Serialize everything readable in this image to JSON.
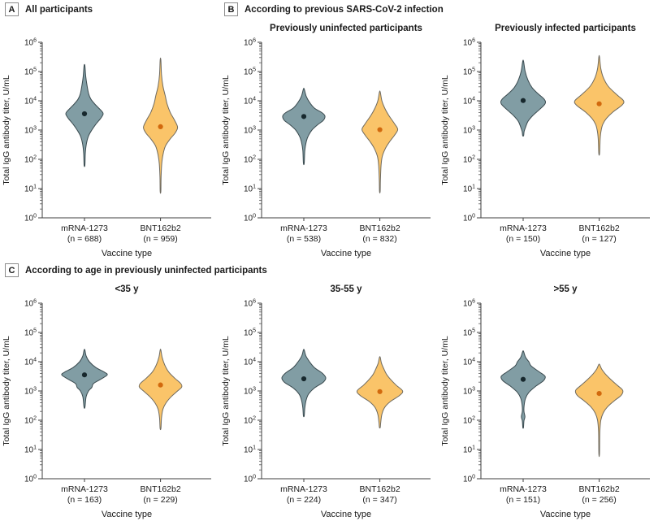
{
  "colors": {
    "background": "#ffffff",
    "text": "#1a1a1a",
    "axis": "#3f3f3f",
    "teal_fill": "#819DA4",
    "teal_stroke": "#3A4A4F",
    "teal_dot": "#17282D",
    "orange_fill": "#FAC469",
    "orange_stroke": "#6E6A60",
    "orange_dot": "#D2690D"
  },
  "axis": {
    "y_label": "Total IgG antibody titer, U/mL",
    "x_label": "Vaccine type",
    "y_scale": "log10",
    "ylim": [
      1,
      1000000
    ],
    "y_tick_exponents": [
      0,
      1,
      2,
      3,
      4,
      5,
      6
    ],
    "minor_ticks": true,
    "grid": false
  },
  "chart_data": {
    "type": "violin",
    "panels": [
      {
        "id": "A",
        "letter": "A",
        "header": "All participants",
        "subtitle": "",
        "row": 0,
        "col": 0,
        "series": [
          {
            "name": "mRNA-1273",
            "n": 688,
            "n_label": "(n = 688)",
            "color": "teal",
            "median": 3600,
            "range": [
              65,
              160000
            ],
            "profile": [
              [
                5.2,
                0.5
              ],
              [
                4.85,
                1.5
              ],
              [
                4.55,
                3
              ],
              [
                4.25,
                5
              ],
              [
                4.05,
                8
              ],
              [
                3.85,
                14
              ],
              [
                3.65,
                21
              ],
              [
                3.55,
                23
              ],
              [
                3.4,
                20
              ],
              [
                3.2,
                14
              ],
              [
                3.0,
                9
              ],
              [
                2.8,
                5
              ],
              [
                2.55,
                2.5
              ],
              [
                2.2,
                1
              ],
              [
                1.8,
                0.5
              ]
            ]
          },
          {
            "name": "BNT162b2",
            "n": 959,
            "n_label": "(n = 959)",
            "color": "orange",
            "median": 1300,
            "range": [
              8,
              250000
            ],
            "profile": [
              [
                5.4,
                0.4
              ],
              [
                4.9,
                1.2
              ],
              [
                4.5,
                3
              ],
              [
                4.15,
                6
              ],
              [
                3.9,
                8
              ],
              [
                3.6,
                12
              ],
              [
                3.35,
                17
              ],
              [
                3.1,
                21
              ],
              [
                2.9,
                18
              ],
              [
                2.7,
                12
              ],
              [
                2.45,
                6
              ],
              [
                2.15,
                3
              ],
              [
                1.85,
                1.5
              ],
              [
                1.4,
                0.7
              ],
              [
                0.9,
                0.4
              ]
            ]
          }
        ]
      },
      {
        "id": "B1",
        "letter": "B",
        "header": "According to previous SARS-CoV-2 infection",
        "subtitle": "Previously uninfected participants",
        "row": 0,
        "col": 1,
        "series": [
          {
            "name": "mRNA-1273",
            "n": 538,
            "n_label": "(n = 538)",
            "color": "teal",
            "median": 2900,
            "range": [
              75,
              25000
            ],
            "profile": [
              [
                4.4,
                0.5
              ],
              [
                4.15,
                3
              ],
              [
                3.95,
                7
              ],
              [
                3.75,
                13
              ],
              [
                3.6,
                22
              ],
              [
                3.48,
                26
              ],
              [
                3.33,
                24
              ],
              [
                3.18,
                17
              ],
              [
                3.0,
                10
              ],
              [
                2.8,
                5.5
              ],
              [
                2.6,
                3
              ],
              [
                2.3,
                1.2
              ],
              [
                1.87,
                0.5
              ]
            ]
          },
          {
            "name": "BNT162b2",
            "n": 832,
            "n_label": "(n = 832)",
            "color": "orange",
            "median": 1030,
            "range": [
              8,
              20000
            ],
            "profile": [
              [
                4.3,
                0.5
              ],
              [
                4.0,
                2.5
              ],
              [
                3.75,
                6
              ],
              [
                3.5,
                11
              ],
              [
                3.22,
                18
              ],
              [
                3.02,
                22
              ],
              [
                2.82,
                18
              ],
              [
                2.6,
                12
              ],
              [
                2.38,
                7
              ],
              [
                2.1,
                3
              ],
              [
                1.8,
                1.5
              ],
              [
                1.3,
                0.7
              ],
              [
                0.9,
                0.4
              ]
            ]
          }
        ]
      },
      {
        "id": "B2",
        "letter": "",
        "header": "",
        "subtitle": "Previously infected participants",
        "row": 0,
        "col": 2,
        "series": [
          {
            "name": "mRNA-1273",
            "n": 150,
            "n_label": "(n = 150)",
            "color": "teal",
            "median": 10200,
            "range": [
              650,
              220000
            ],
            "profile": [
              [
                5.35,
                0.5
              ],
              [
                5.0,
                2.5
              ],
              [
                4.7,
                6
              ],
              [
                4.45,
                11
              ],
              [
                4.25,
                18
              ],
              [
                4.05,
                26
              ],
              [
                3.9,
                27
              ],
              [
                3.7,
                20
              ],
              [
                3.5,
                12
              ],
              [
                3.3,
                6
              ],
              [
                3.1,
                3
              ],
              [
                2.95,
                1.2
              ],
              [
                2.81,
                0.6
              ]
            ]
          },
          {
            "name": "BNT162b2",
            "n": 127,
            "n_label": "(n = 127)",
            "color": "orange",
            "median": 7900,
            "range": [
              160,
              320000
            ],
            "profile": [
              [
                5.5,
                0.4
              ],
              [
                5.1,
                2
              ],
              [
                4.8,
                5
              ],
              [
                4.5,
                11
              ],
              [
                4.2,
                22
              ],
              [
                4.0,
                30
              ],
              [
                3.85,
                28
              ],
              [
                3.62,
                17
              ],
              [
                3.4,
                9
              ],
              [
                3.2,
                4.5
              ],
              [
                3.0,
                2.5
              ],
              [
                2.7,
                1.2
              ],
              [
                2.2,
                0.5
              ]
            ]
          }
        ]
      },
      {
        "id": "C1",
        "letter": "C",
        "header": "According to age in previously uninfected participants",
        "subtitle": "<35 y",
        "row": 1,
        "col": 0,
        "series": [
          {
            "name": "mRNA-1273",
            "n": 163,
            "n_label": "(n = 163)",
            "color": "teal",
            "median": 3550,
            "range": [
              280,
              25000
            ],
            "profile": [
              [
                4.4,
                0.5
              ],
              [
                4.2,
                2
              ],
              [
                4.0,
                6
              ],
              [
                3.8,
                14
              ],
              [
                3.65,
                24
              ],
              [
                3.55,
                28
              ],
              [
                3.4,
                20
              ],
              [
                3.25,
                11
              ],
              [
                3.12,
                9
              ],
              [
                3.0,
                5
              ],
              [
                2.8,
                2
              ],
              [
                2.45,
                0.6
              ]
            ]
          },
          {
            "name": "BNT162b2",
            "n": 229,
            "n_label": "(n = 229)",
            "color": "orange",
            "median": 1600,
            "range": [
              55,
              25000
            ],
            "profile": [
              [
                4.4,
                0.4
              ],
              [
                4.15,
                2
              ],
              [
                3.9,
                5
              ],
              [
                3.65,
                10
              ],
              [
                3.45,
                17
              ],
              [
                3.25,
                25
              ],
              [
                3.13,
                26
              ],
              [
                3.0,
                21
              ],
              [
                2.8,
                13
              ],
              [
                2.6,
                7
              ],
              [
                2.38,
                3
              ],
              [
                2.08,
                1.2
              ],
              [
                1.72,
                0.5
              ]
            ]
          }
        ]
      },
      {
        "id": "C2",
        "letter": "",
        "header": "",
        "subtitle": "35-55 y",
        "row": 1,
        "col": 1,
        "series": [
          {
            "name": "mRNA-1273",
            "n": 224,
            "n_label": "(n = 224)",
            "color": "teal",
            "median": 2600,
            "range": [
              150,
              25000
            ],
            "profile": [
              [
                4.4,
                0.5
              ],
              [
                4.2,
                2.5
              ],
              [
                4.0,
                7
              ],
              [
                3.8,
                13
              ],
              [
                3.6,
                23
              ],
              [
                3.45,
                27
              ],
              [
                3.3,
                24
              ],
              [
                3.1,
                13
              ],
              [
                2.9,
                6
              ],
              [
                2.7,
                3
              ],
              [
                2.42,
                1.2
              ],
              [
                2.15,
                0.5
              ]
            ]
          },
          {
            "name": "BNT162b2",
            "n": 347,
            "n_label": "(n = 347)",
            "color": "orange",
            "median": 950,
            "range": [
              60,
              14000
            ],
            "profile": [
              [
                4.15,
                0.5
              ],
              [
                3.95,
                2
              ],
              [
                3.75,
                5
              ],
              [
                3.58,
                8
              ],
              [
                3.4,
                13
              ],
              [
                3.2,
                20
              ],
              [
                3.0,
                28
              ],
              [
                2.84,
                24
              ],
              [
                2.64,
                13
              ],
              [
                2.44,
                6
              ],
              [
                2.2,
                2.5
              ],
              [
                1.9,
                1
              ],
              [
                1.75,
                0.5
              ]
            ]
          }
        ]
      },
      {
        "id": "C3",
        "letter": "",
        "header": "",
        "subtitle": ">55 y",
        "row": 1,
        "col": 2,
        "series": [
          {
            "name": "mRNA-1273",
            "n": 151,
            "n_label": "(n = 151)",
            "color": "teal",
            "median": 2500,
            "range": [
              55,
              22000
            ],
            "profile": [
              [
                4.35,
                0.5
              ],
              [
                4.15,
                3
              ],
              [
                4.0,
                7
              ],
              [
                3.85,
                10
              ],
              [
                3.65,
                20
              ],
              [
                3.5,
                27
              ],
              [
                3.35,
                25
              ],
              [
                3.15,
                15
              ],
              [
                2.95,
                7
              ],
              [
                2.75,
                3
              ],
              [
                2.5,
                1.2
              ],
              [
                2.3,
                1.0
              ],
              [
                2.12,
                2.2
              ],
              [
                1.98,
                1.0
              ],
              [
                1.75,
                0.4
              ]
            ]
          },
          {
            "name": "BNT162b2",
            "n": 256,
            "n_label": "(n = 256)",
            "color": "orange",
            "median": 820,
            "range": [
              7,
              8000
            ],
            "profile": [
              [
                3.9,
                0.6
              ],
              [
                3.75,
                3
              ],
              [
                3.6,
                7
              ],
              [
                3.4,
                14
              ],
              [
                3.2,
                22
              ],
              [
                3.02,
                29
              ],
              [
                2.85,
                27
              ],
              [
                2.65,
                18
              ],
              [
                2.45,
                10
              ],
              [
                2.25,
                5
              ],
              [
                2.0,
                2
              ],
              [
                1.6,
                0.8
              ],
              [
                0.85,
                0.4
              ]
            ]
          }
        ]
      }
    ]
  }
}
